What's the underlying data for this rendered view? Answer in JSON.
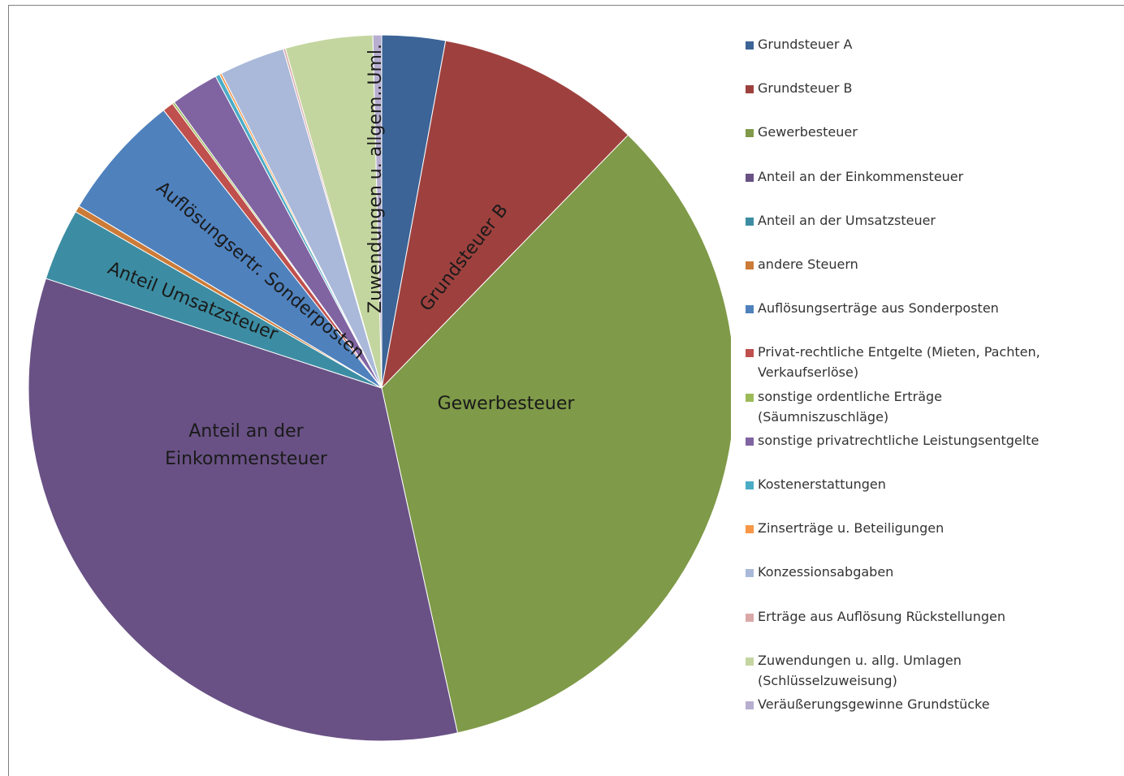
{
  "chart_data": {
    "type": "pie",
    "categories": [
      "Grundsteuer A",
      "Grundsteuer B",
      "Gewerbesteuer",
      "Anteil an der Einkommensteuer",
      "Anteil an der Umsatzsteuer",
      "andere Steuern",
      "Auflösungserträge aus Sonderposten",
      "Privat-rechtliche Entgelte (Mieten, Pachten, Verkaufserlöse)",
      "sonstige ordentliche Erträge (Säumniszuschläge)",
      "sonstige privatrechtliche Leistungsentgelte",
      "Kostenerstattungen",
      "Zinserträge u. Beteiligungen",
      "Konzessionsabgaben",
      "Erträge aus Auflösung Rückstellungen",
      "Zuwendungen u. allg. Umlagen (Schlüsselzuweisung)",
      "Veräußerungsgewinne Grundstücke"
    ],
    "values": [
      2.9,
      9.4,
      34.3,
      33.5,
      3.3,
      0.3,
      5.8,
      0.5,
      0.1,
      2.2,
      0.2,
      0.1,
      3.0,
      0.1,
      4.0,
      0.4
    ],
    "colors": [
      "#3c6497",
      "#9e413e",
      "#7f9a48",
      "#695185",
      "#3c8da3",
      "#cc7b38",
      "#4f81bd",
      "#c0504d",
      "#9bbb59",
      "#8064a2",
      "#4bacc6",
      "#f79646",
      "#aab9d9",
      "#d9a8a7",
      "#c4d6a0",
      "#b7aed0"
    ],
    "data_labels": [
      null,
      "Grundsteuer B",
      "Gewerbesteuer",
      [
        "Anteil an der",
        "Einkommensteuer"
      ],
      "Anteil Umsatzsteuer",
      null,
      "Auflösungsertr. Sonderposten",
      null,
      null,
      null,
      null,
      null,
      null,
      null,
      "Zuwendungen u. allgem..Uml.",
      null
    ],
    "legend": "right"
  }
}
